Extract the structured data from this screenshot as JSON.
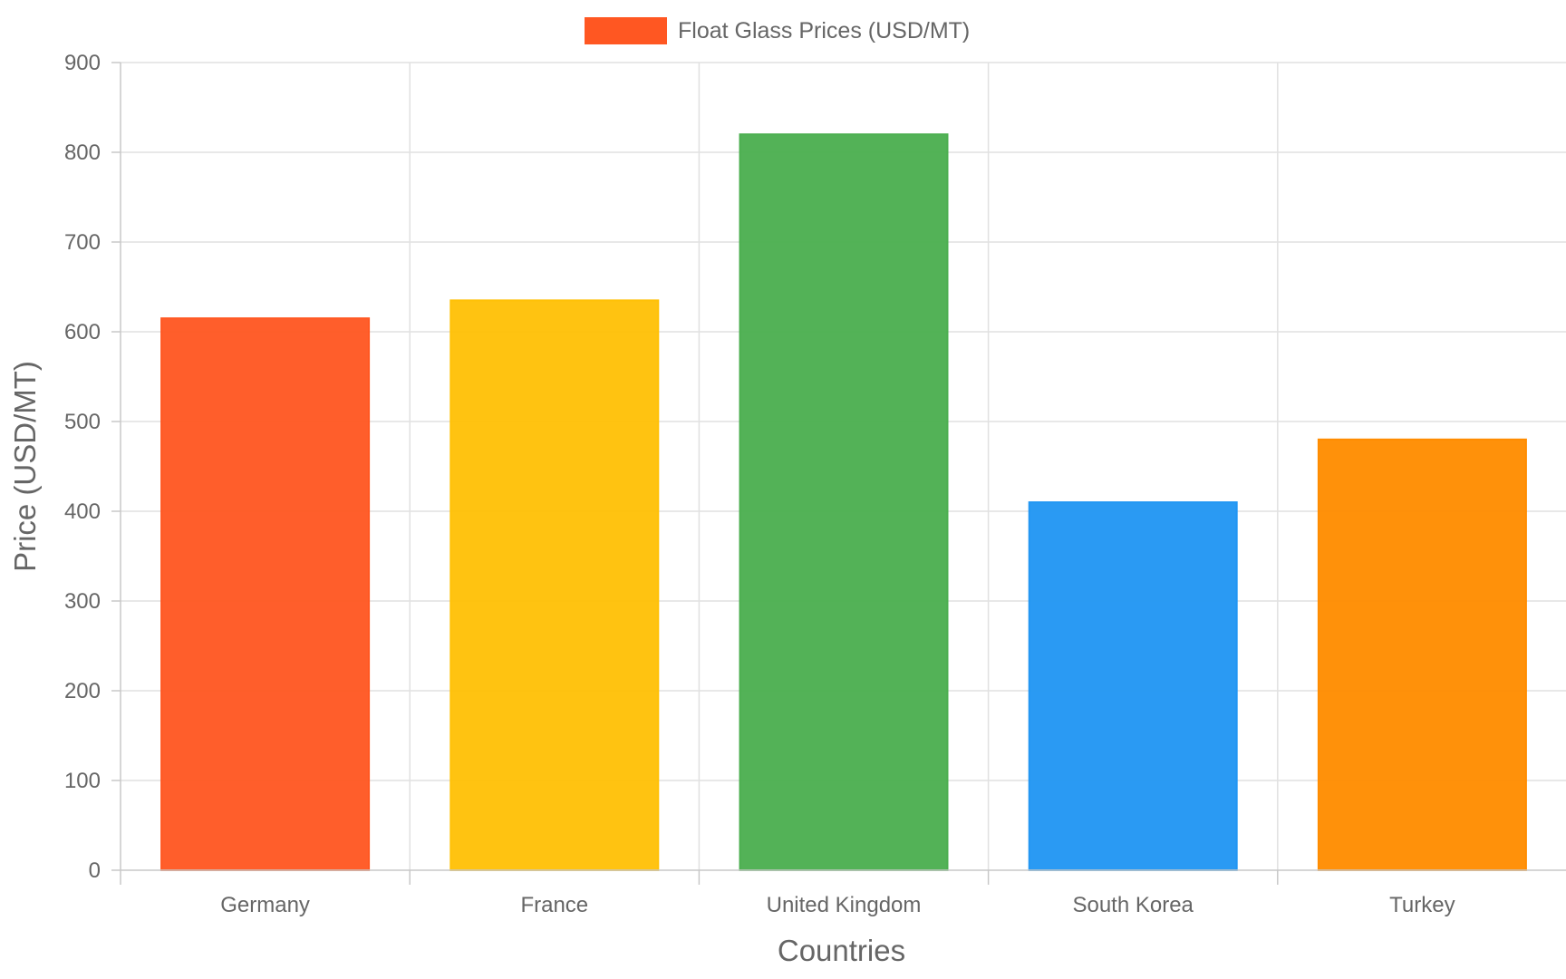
{
  "chart_data": {
    "type": "bar",
    "categories": [
      "Germany",
      "France",
      "United Kingdom",
      "South Korea",
      "Turkey"
    ],
    "series": [
      {
        "name": "Float Glass Prices (USD/MT)",
        "values": [
          615,
          635,
          820,
          410,
          480
        ],
        "colors": [
          "#ff5722",
          "#ffc107",
          "#4caf50",
          "#2196f3",
          "#ff8c00"
        ]
      }
    ],
    "xlabel": "Countries",
    "ylabel": "Price (USD/MT)",
    "ylim": [
      0,
      900
    ],
    "yticks": [
      0,
      100,
      200,
      300,
      400,
      500,
      600,
      700,
      800,
      900
    ],
    "grid": true,
    "legend": {
      "position": "top-center",
      "label": "Float Glass Prices (USD/MT)",
      "swatch_color": "#ff5722"
    }
  }
}
